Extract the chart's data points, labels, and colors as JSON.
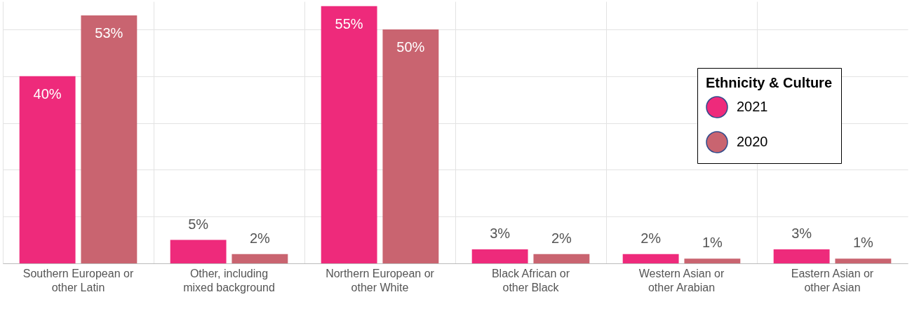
{
  "chart_data": {
    "type": "bar",
    "categories": [
      "Southern European or other Latin",
      "Other, including mixed background",
      "Northern European or other White",
      "Black African or other Black",
      "Western Asian or other Arabian",
      "Eastern Asian or other Asian"
    ],
    "series": [
      {
        "name": "2021",
        "color": "#ee2a7b",
        "values": [
          40,
          5,
          55,
          3,
          2,
          3
        ],
        "value_labels": [
          "40%",
          "5%",
          "55%",
          "3%",
          "2%",
          "3%"
        ]
      },
      {
        "name": "2020",
        "color": "#c96470",
        "values": [
          53,
          2,
          50,
          2,
          1,
          1
        ],
        "value_labels": [
          "53%",
          "2%",
          "50%",
          "2%",
          "1%",
          "1%"
        ]
      }
    ],
    "legend_title": "Ethnicity & Culture",
    "legend": "top right",
    "ylim": [
      0,
      56
    ],
    "yticks": [
      {
        "value": 0,
        "label": null
      },
      {
        "value": 10,
        "label": null
      },
      {
        "value": 20,
        "label": null
      },
      {
        "value": 30,
        "label": null
      },
      {
        "value": 40,
        "label": null
      },
      {
        "value": 50,
        "label": null
      }
    ],
    "tick_labels": "x",
    "grid": true
  }
}
